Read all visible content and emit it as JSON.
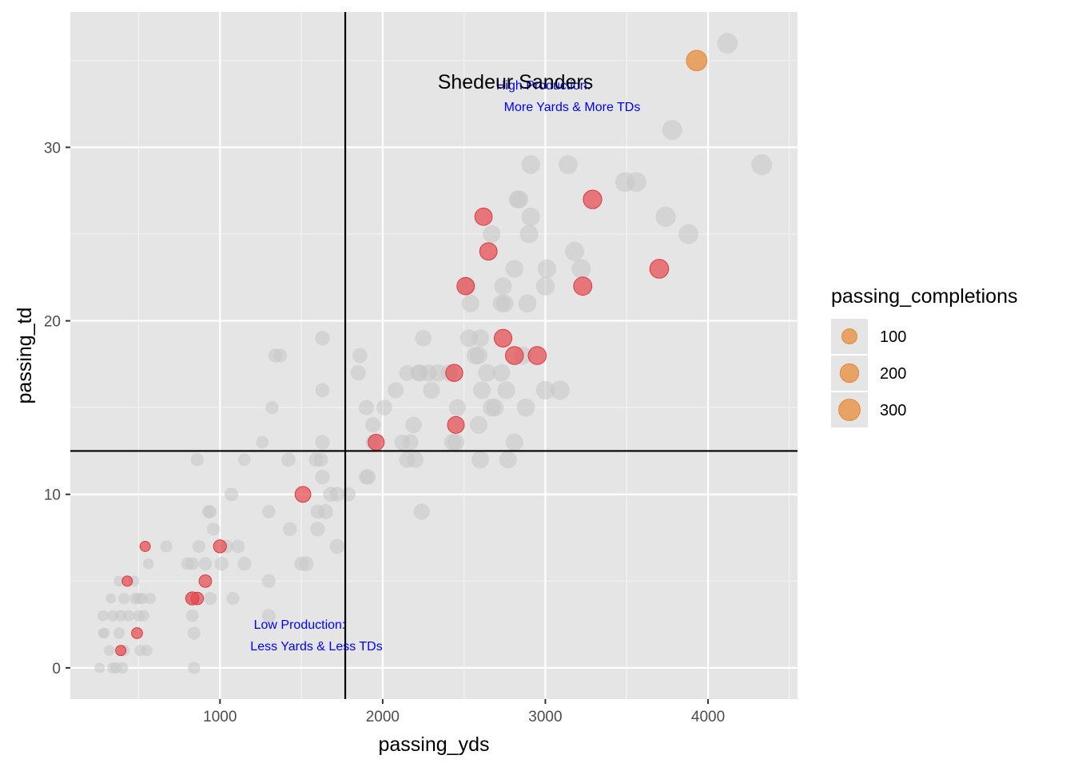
{
  "chart_data": {
    "type": "scatter",
    "xlabel": "passing_yds",
    "ylabel": "passing_td",
    "xlim": [
      80,
      4550
    ],
    "ylim": [
      -1.8,
      37.8
    ],
    "x_ticks": [
      1000,
      2000,
      3000,
      4000
    ],
    "y_ticks": [
      0,
      10,
      20,
      30
    ],
    "x_tick_labels": [
      "1000",
      "2000",
      "3000",
      "4000"
    ],
    "y_tick_labels": [
      "0",
      "10",
      "20",
      "30"
    ],
    "grid": true,
    "background": "#e5e5e5",
    "vline_x": 1770,
    "hline_y": 12.5,
    "legend": {
      "title": "passing_completions",
      "position": "right",
      "entries": [
        {
          "label": "100",
          "value": 100
        },
        {
          "label": "200",
          "value": 200
        },
        {
          "label": "300",
          "value": 300
        }
      ],
      "color": "#e8964d"
    },
    "annotations": {
      "highlight_name": "Shedeur Sanders",
      "high_line1": "High Production:",
      "high_line2": "More Yards & More TDs",
      "low_line1": "Low Production:",
      "low_line2": "Less Yards & Less TDs"
    },
    "colors": {
      "gray": "#c6c6c6",
      "red": "#e8474d",
      "orange": "#e8964d",
      "ref_line": "#000000"
    },
    "series": [
      {
        "group": "other",
        "color": "#c6c6c6",
        "points": [
          [
            4120,
            36,
            330
          ],
          [
            3780,
            31,
            310
          ],
          [
            4330,
            29,
            340
          ],
          [
            3880,
            25,
            300
          ],
          [
            3740,
            26,
            320
          ],
          [
            3560,
            28,
            300
          ],
          [
            3490,
            28,
            300
          ],
          [
            3220,
            23,
            280
          ],
          [
            3180,
            24,
            280
          ],
          [
            3140,
            29,
            270
          ],
          [
            3090,
            16,
            280
          ],
          [
            3010,
            23,
            260
          ],
          [
            3000,
            22,
            260
          ],
          [
            3000,
            16,
            260
          ],
          [
            2910,
            29,
            260
          ],
          [
            2910,
            26,
            250
          ],
          [
            2900,
            25,
            250
          ],
          [
            2890,
            21,
            240
          ],
          [
            2880,
            15,
            240
          ],
          [
            2860,
            18,
            240
          ],
          [
            2840,
            27,
            230
          ],
          [
            2830,
            27,
            230
          ],
          [
            2810,
            23,
            230
          ],
          [
            2810,
            13,
            220
          ],
          [
            2770,
            12,
            220
          ],
          [
            2760,
            16,
            230
          ],
          [
            2750,
            21,
            220
          ],
          [
            2740,
            22,
            220
          ],
          [
            2730,
            17,
            220
          ],
          [
            2730,
            21,
            210
          ],
          [
            2690,
            15,
            220
          ],
          [
            2670,
            25,
            220
          ],
          [
            2670,
            15,
            230
          ],
          [
            2640,
            17,
            220
          ],
          [
            2610,
            16,
            220
          ],
          [
            2600,
            19,
            220
          ],
          [
            2600,
            12,
            220
          ],
          [
            2590,
            18,
            220
          ],
          [
            2590,
            14,
            220
          ],
          [
            2570,
            18,
            220
          ],
          [
            2540,
            21,
            220
          ],
          [
            2530,
            19,
            220
          ],
          [
            2520,
            22,
            210
          ],
          [
            2460,
            15,
            200
          ],
          [
            2450,
            13,
            200
          ],
          [
            2430,
            13,
            200
          ],
          [
            2410,
            17,
            210
          ],
          [
            2340,
            17,
            210
          ],
          [
            2300,
            16,
            200
          ],
          [
            2280,
            17,
            200
          ],
          [
            2250,
            19,
            180
          ],
          [
            2240,
            9,
            180
          ],
          [
            2230,
            17,
            190
          ],
          [
            2220,
            17,
            190
          ],
          [
            2200,
            12,
            190
          ],
          [
            2190,
            14,
            180
          ],
          [
            2170,
            13,
            170
          ],
          [
            2150,
            12,
            170
          ],
          [
            2150,
            17,
            160
          ],
          [
            2120,
            13,
            160
          ],
          [
            2080,
            16,
            170
          ],
          [
            2010,
            15,
            160
          ],
          [
            1940,
            14,
            150
          ],
          [
            1940,
            13,
            140
          ],
          [
            1910,
            11,
            150
          ],
          [
            1900,
            15,
            150
          ],
          [
            1900,
            11,
            140
          ],
          [
            1860,
            18,
            140
          ],
          [
            1850,
            17,
            150
          ],
          [
            1790,
            10,
            120
          ],
          [
            1720,
            7,
            140
          ],
          [
            1720,
            10,
            140
          ],
          [
            1680,
            10,
            140
          ],
          [
            1650,
            9,
            140
          ],
          [
            1630,
            11,
            130
          ],
          [
            1630,
            13,
            130
          ],
          [
            1630,
            16,
            120
          ],
          [
            1630,
            19,
            130
          ],
          [
            1620,
            12,
            120
          ],
          [
            1600,
            8,
            130
          ],
          [
            1600,
            9,
            120
          ],
          [
            1590,
            12,
            120
          ],
          [
            1530,
            6,
            130
          ],
          [
            1500,
            6,
            120
          ],
          [
            1430,
            8,
            110
          ],
          [
            1420,
            12,
            120
          ],
          [
            1370,
            18,
            110
          ],
          [
            1340,
            18,
            110
          ],
          [
            1300,
            3,
            110
          ],
          [
            1300,
            5,
            110
          ],
          [
            1300,
            9,
            100
          ],
          [
            1320,
            15,
            90
          ],
          [
            1260,
            13,
            80
          ],
          [
            1150,
            6,
            110
          ],
          [
            1150,
            12,
            80
          ],
          [
            1110,
            7,
            100
          ],
          [
            1080,
            4,
            90
          ],
          [
            1070,
            10,
            110
          ],
          [
            1040,
            7,
            100
          ],
          [
            1010,
            6,
            110
          ],
          [
            960,
            8,
            90
          ],
          [
            940,
            9,
            90
          ],
          [
            930,
            9,
            90
          ],
          [
            940,
            4,
            90
          ],
          [
            910,
            6,
            100
          ],
          [
            870,
            7,
            90
          ],
          [
            860,
            12,
            90
          ],
          [
            840,
            2,
            90
          ],
          [
            830,
            6,
            90
          ],
          [
            830,
            3,
            80
          ],
          [
            840,
            0,
            70
          ],
          [
            820,
            4,
            80
          ],
          [
            800,
            6,
            80
          ],
          [
            670,
            7,
            70
          ],
          [
            570,
            4,
            60
          ],
          [
            560,
            6,
            50
          ],
          [
            550,
            1,
            60
          ],
          [
            530,
            3,
            60
          ],
          [
            520,
            4,
            60
          ],
          [
            510,
            1,
            60
          ],
          [
            500,
            4,
            60
          ],
          [
            500,
            3,
            60
          ],
          [
            480,
            4,
            60
          ],
          [
            470,
            5,
            50
          ],
          [
            440,
            3,
            60
          ],
          [
            410,
            4,
            60
          ],
          [
            410,
            1,
            60
          ],
          [
            400,
            0,
            60
          ],
          [
            390,
            3,
            60
          ],
          [
            380,
            2,
            60
          ],
          [
            380,
            5,
            50
          ],
          [
            360,
            0,
            60
          ],
          [
            340,
            3,
            60
          ],
          [
            320,
            1,
            50
          ],
          [
            330,
            4,
            40
          ],
          [
            290,
            2,
            50
          ],
          [
            280,
            3,
            50
          ],
          [
            280,
            2,
            40
          ],
          [
            260,
            0,
            40
          ],
          [
            340,
            0,
            50
          ]
        ]
      },
      {
        "group": "highlight",
        "color": "#e8474d",
        "points": [
          [
            3290,
            27,
            250
          ],
          [
            3700,
            23,
            260
          ],
          [
            3230,
            22,
            240
          ],
          [
            2950,
            18,
            230
          ],
          [
            2810,
            18,
            230
          ],
          [
            2740,
            19,
            220
          ],
          [
            2620,
            26,
            210
          ],
          [
            2650,
            24,
            210
          ],
          [
            2510,
            22,
            210
          ],
          [
            2440,
            17,
            200
          ],
          [
            2450,
            14,
            190
          ],
          [
            1960,
            13,
            170
          ],
          [
            1510,
            10,
            160
          ],
          [
            1000,
            7,
            90
          ],
          [
            910,
            5,
            80
          ],
          [
            860,
            4,
            80
          ],
          [
            830,
            4,
            90
          ],
          [
            540,
            7,
            40
          ],
          [
            430,
            5,
            40
          ],
          [
            490,
            2,
            50
          ],
          [
            390,
            1,
            40
          ]
        ]
      },
      {
        "group": "Shedeur Sanders",
        "color": "#e8964d",
        "points": [
          [
            3930,
            35,
            330
          ]
        ]
      }
    ]
  }
}
